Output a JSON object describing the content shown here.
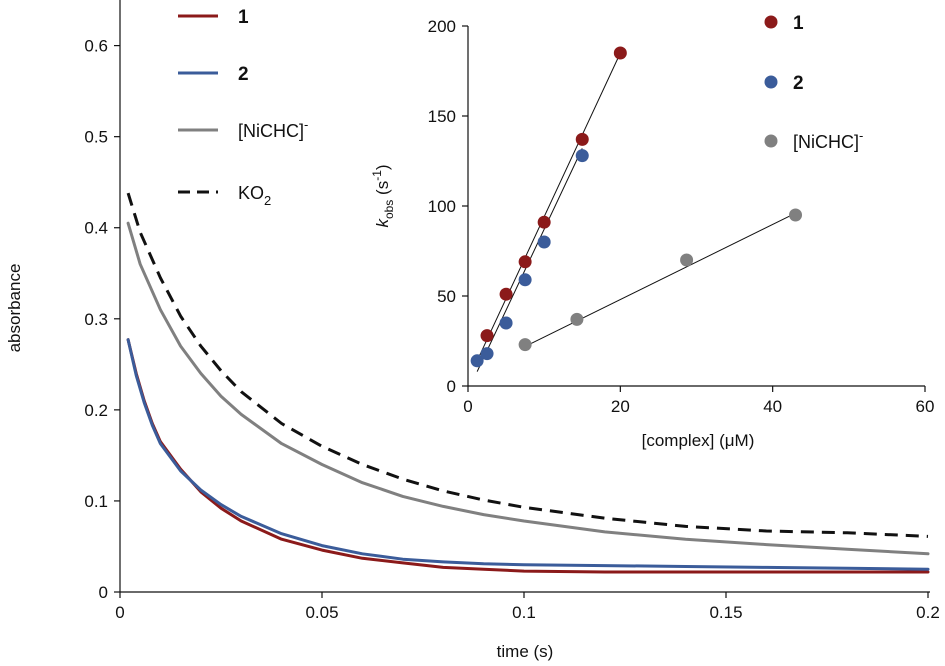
{
  "chart_data": [
    {
      "type": "line",
      "xlabel": "time (s)",
      "ylabel": "absorbance",
      "xlim": [
        0,
        0.2
      ],
      "ylim": [
        0,
        0.65
      ],
      "x_ticks": [
        0,
        0.05,
        0.1,
        0.15,
        0.2
      ],
      "x_tick_labels": [
        "0",
        "0.05",
        "0.1",
        "0.15",
        "0.2"
      ],
      "y_ticks": [
        0,
        0.1,
        0.2,
        0.3,
        0.4,
        0.5,
        0.6
      ],
      "y_tick_labels": [
        "0",
        "0.1",
        "0.2",
        "0.3",
        "0.4",
        "0.5",
        "0.6"
      ],
      "grid": false,
      "legend_position": "top-left",
      "series": [
        {
          "name": "1",
          "color": "#8b1a1a",
          "dash": "solid",
          "x": [
            0.002,
            0.004,
            0.006,
            0.008,
            0.01,
            0.015,
            0.02,
            0.025,
            0.03,
            0.04,
            0.05,
            0.06,
            0.07,
            0.08,
            0.09,
            0.1,
            0.12,
            0.14,
            0.16,
            0.18,
            0.2
          ],
          "y": [
            0.277,
            0.24,
            0.21,
            0.185,
            0.165,
            0.135,
            0.11,
            0.092,
            0.078,
            0.058,
            0.046,
            0.037,
            0.032,
            0.027,
            0.025,
            0.023,
            0.022,
            0.022,
            0.022,
            0.022,
            0.022
          ]
        },
        {
          "name": "2",
          "color": "#3b5c9a",
          "dash": "solid",
          "x": [
            0.002,
            0.004,
            0.006,
            0.008,
            0.01,
            0.015,
            0.02,
            0.025,
            0.03,
            0.04,
            0.05,
            0.06,
            0.07,
            0.08,
            0.09,
            0.1,
            0.12,
            0.14,
            0.16,
            0.18,
            0.2
          ],
          "y": [
            0.277,
            0.238,
            0.208,
            0.183,
            0.163,
            0.133,
            0.112,
            0.096,
            0.083,
            0.064,
            0.051,
            0.042,
            0.036,
            0.033,
            0.031,
            0.03,
            0.029,
            0.028,
            0.027,
            0.026,
            0.025
          ]
        },
        {
          "name": "[NiCHC]-",
          "color": "#808080",
          "dash": "solid",
          "x": [
            0.002,
            0.005,
            0.01,
            0.015,
            0.02,
            0.025,
            0.03,
            0.04,
            0.05,
            0.06,
            0.07,
            0.08,
            0.09,
            0.1,
            0.12,
            0.14,
            0.16,
            0.18,
            0.2
          ],
          "y": [
            0.405,
            0.36,
            0.31,
            0.27,
            0.24,
            0.215,
            0.195,
            0.163,
            0.14,
            0.12,
            0.105,
            0.094,
            0.085,
            0.078,
            0.066,
            0.058,
            0.052,
            0.047,
            0.042
          ]
        },
        {
          "name": "KO2",
          "color": "#111111",
          "dash": "dashed",
          "x": [
            0.002,
            0.005,
            0.01,
            0.015,
            0.02,
            0.025,
            0.03,
            0.04,
            0.05,
            0.06,
            0.07,
            0.08,
            0.09,
            0.1,
            0.12,
            0.14,
            0.16,
            0.18,
            0.2
          ],
          "y": [
            0.438,
            0.395,
            0.345,
            0.303,
            0.27,
            0.243,
            0.22,
            0.185,
            0.16,
            0.14,
            0.124,
            0.111,
            0.101,
            0.093,
            0.081,
            0.072,
            0.067,
            0.065,
            0.061
          ]
        }
      ]
    },
    {
      "type": "scatter",
      "xlabel": "[complex] (μM)",
      "ylabel_main": "k",
      "ylabel_sub": "obs",
      "ylabel_unit": " (s",
      "ylabel_sup": "-1",
      "ylabel_close": ")",
      "xlim": [
        0,
        60
      ],
      "ylim": [
        0,
        200
      ],
      "x_ticks": [
        0,
        20,
        40,
        60
      ],
      "x_tick_labels": [
        "0",
        "20",
        "40",
        "60"
      ],
      "y_ticks": [
        0,
        50,
        100,
        150,
        200
      ],
      "y_tick_labels": [
        "0",
        "50",
        "100",
        "150",
        "200"
      ],
      "grid": false,
      "legend_position": "top-right",
      "series": [
        {
          "name": "1",
          "color": "#8b1a1a",
          "x": [
            2.5,
            5,
            7.5,
            10,
            15,
            20
          ],
          "y": [
            28,
            51,
            69,
            91,
            137,
            185
          ],
          "fit": [
            [
              1.2,
              14
            ],
            [
              20,
              185
            ]
          ]
        },
        {
          "name": "2",
          "color": "#3b5c9a",
          "x": [
            1.2,
            2.5,
            5,
            7.5,
            10,
            15
          ],
          "y": [
            14,
            18,
            35,
            59,
            80,
            128
          ],
          "fit": [
            [
              1.2,
              8
            ],
            [
              15,
              132
            ]
          ]
        },
        {
          "name": "[NiCHC]-",
          "color": "#808080",
          "x": [
            7.5,
            14.3,
            28.7,
            43
          ],
          "y": [
            23,
            37,
            70,
            95
          ],
          "fit": [
            [
              7.5,
              22
            ],
            [
              43,
              96
            ]
          ]
        }
      ]
    }
  ],
  "legend_main": {
    "items": [
      {
        "label": "1",
        "bold": true
      },
      {
        "label": "2",
        "bold": true
      },
      {
        "label": "[NiCHC]",
        "sup": "-"
      },
      {
        "label": "KO",
        "sub": "2"
      }
    ]
  },
  "legend_inset": {
    "items": [
      {
        "label": "1",
        "bold": true
      },
      {
        "label": "2",
        "bold": true
      },
      {
        "label": "[NiCHC]",
        "sup": "-"
      }
    ]
  }
}
